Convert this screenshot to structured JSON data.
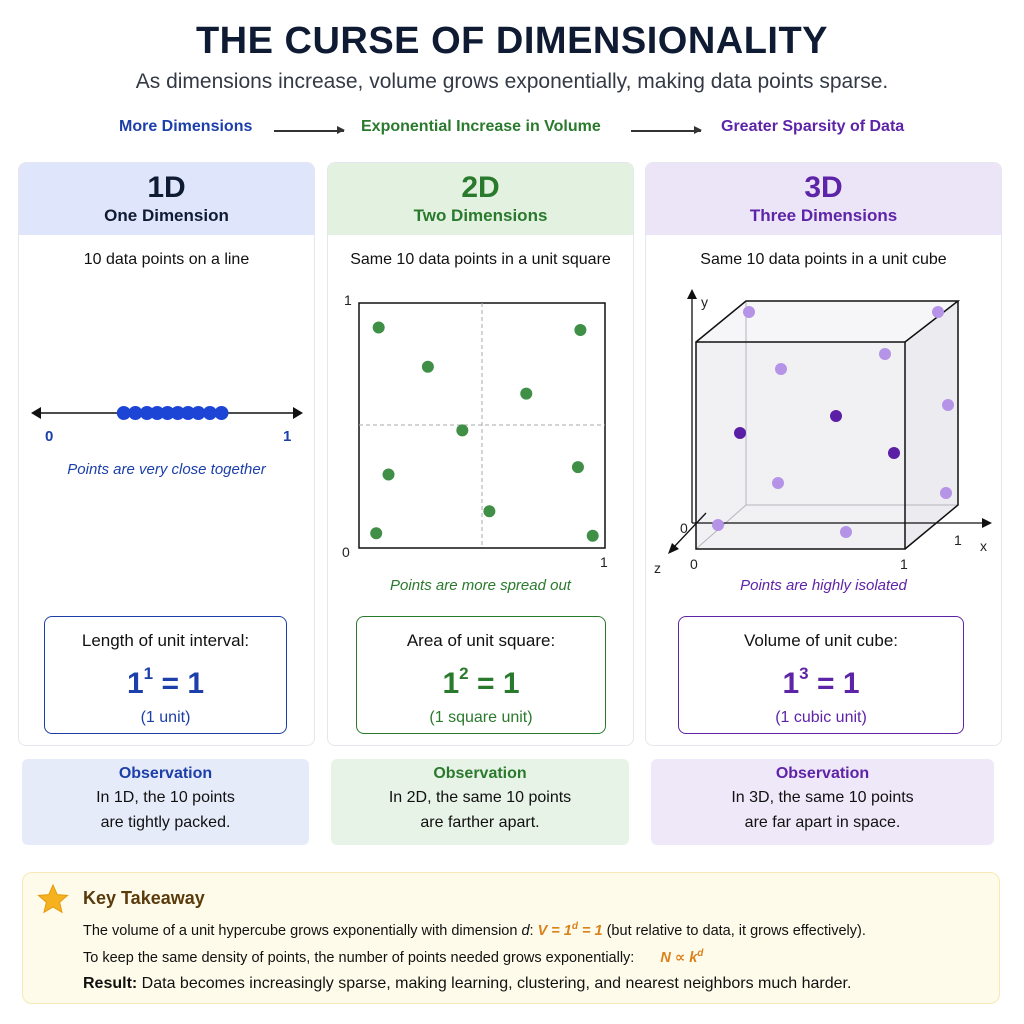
{
  "title": "THE CURSE OF DIMENSIONALITY",
  "subtitle": "As dimensions increase, volume grows exponentially, making data points sparse.",
  "flow": [
    "More Dimensions",
    "Exponential Increase in Volume",
    "Greater Sparsity of Data"
  ],
  "colors": {
    "one_d": "#1c3faa",
    "two_d": "#2a7a2d",
    "three_d": "#5e24a8",
    "takeaway_accent": "#d9821c"
  },
  "panels": [
    {
      "dim": "1D",
      "name": "One Dimension",
      "caption": "10 data points on a line",
      "axis_labels": [
        "0",
        "1"
      ],
      "points_x": [
        0.33,
        0.375,
        0.42,
        0.46,
        0.5,
        0.54,
        0.58,
        0.62,
        0.665,
        0.71
      ],
      "note": "Points are very close together",
      "formula_label": "Length of unit interval:",
      "formula_base": "1",
      "formula_exp": "1",
      "formula_rhs": " = 1",
      "unit": "(1 unit)",
      "obs_title": "Observation",
      "obs_line1": "In 1D, the 10 points",
      "obs_line2": "are tightly packed."
    },
    {
      "dim": "2D",
      "name": "Two Dimensions",
      "caption": "Same 10 data points in a unit square",
      "axis_labels": [
        "1",
        "0",
        "1"
      ],
      "points": [
        [
          0.08,
          0.9
        ],
        [
          0.9,
          0.89
        ],
        [
          0.28,
          0.74
        ],
        [
          0.68,
          0.63
        ],
        [
          0.42,
          0.48
        ],
        [
          0.12,
          0.3
        ],
        [
          0.89,
          0.33
        ],
        [
          0.53,
          0.15
        ],
        [
          0.07,
          0.06
        ],
        [
          0.95,
          0.05
        ]
      ],
      "note": "Points are more spread out",
      "formula_label": "Area of unit square:",
      "formula_base": "1",
      "formula_exp": "2",
      "formula_rhs": " = 1",
      "unit": "(1 square unit)",
      "obs_title": "Observation",
      "obs_line1": "In 2D, the same 10 points",
      "obs_line2": "are farther apart."
    },
    {
      "dim": "3D",
      "name": "Three Dimensions",
      "caption": "Same 10 data points in a unit cube",
      "axis_labels": {
        "y": "y",
        "x": "x",
        "z": "z",
        "origin": "0",
        "x_one": "1",
        "z_one": "1",
        "bottom_zero": "0",
        "bottom_one": "1"
      },
      "note": "Points are highly isolated",
      "formula_label": "Volume of unit cube:",
      "formula_base": "1",
      "formula_exp": "3",
      "formula_rhs": " = 1",
      "unit": "(1 cubic unit)",
      "obs_title": "Observation",
      "obs_line1": "In 3D, the same 10 points",
      "obs_line2": "are far apart in space."
    }
  ],
  "takeaway": {
    "title": "Key Takeaway",
    "line1_text": "The volume of a unit hypercube grows exponentially with dimension ",
    "line1_var": "d",
    "line1_colon": ":  ",
    "line1_math_v": "V",
    "line1_math_mid": " = 1",
    "line1_math_exp": "d",
    "line1_math_end": " = 1",
    "line1_tail": "  (but relative to data, it grows effectively).",
    "line2_text": "To keep the same density of points, the number of points needed grows exponentially:",
    "line2_math": "N ∝ k",
    "line2_math_exp": "d",
    "line3_bold": "Result:",
    "line3_text": " Data becomes increasingly sparse, making learning, clustering, and nearest neighbors much harder."
  }
}
